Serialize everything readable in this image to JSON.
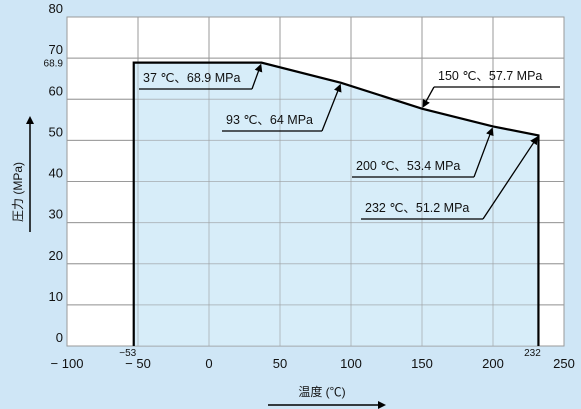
{
  "colors": {
    "page_background": "#cfe6f6",
    "plot_background": "#ffffff",
    "grid": "#9a9a9a",
    "envelope_fill": "#d3ebf8",
    "envelope_line": "#000000"
  },
  "chart_data": {
    "type": "area",
    "title": "",
    "xlabel": "温度 (℃)",
    "ylabel": "圧力 (MPa)",
    "xlim": [
      -100,
      250
    ],
    "ylim": [
      0,
      80
    ],
    "x_ticks": [
      "-100",
      "-50",
      "0",
      "50",
      "100",
      "150",
      "200",
      "250"
    ],
    "x_tick_values": [
      -100,
      -50,
      0,
      50,
      100,
      150,
      200,
      250
    ],
    "y_ticks": [
      "0",
      "10",
      "20",
      "30",
      "40",
      "50",
      "60",
      "70",
      "80"
    ],
    "y_tick_values": [
      0,
      10,
      20,
      30,
      40,
      50,
      60,
      70,
      80
    ],
    "extra_x_labels": [
      {
        "value": -53,
        "label": "-53"
      },
      {
        "value": 232,
        "label": "232"
      }
    ],
    "extra_y_labels": [
      {
        "value": 68.9,
        "label": "68.9"
      }
    ],
    "grid": true,
    "series": [
      {
        "x": [
          -53,
          -53,
          37,
          93,
          150,
          200,
          232,
          232
        ],
        "y": [
          0,
          68.9,
          68.9,
          64,
          57.7,
          53.4,
          51.2,
          0
        ]
      }
    ],
    "annotations": [
      {
        "text": "37 ℃、68.9 MPa",
        "x": 37,
        "y": 68.9
      },
      {
        "text": "93 ℃、64 MPa",
        "x": 93,
        "y": 64
      },
      {
        "text": "150 ℃、57.7 MPa",
        "x": 150,
        "y": 57.7
      },
      {
        "text": "200 ℃、53.4 MPa",
        "x": 200,
        "y": 53.4
      },
      {
        "text": "232 ℃、51.2 MPa",
        "x": 232,
        "y": 51.2
      }
    ]
  }
}
